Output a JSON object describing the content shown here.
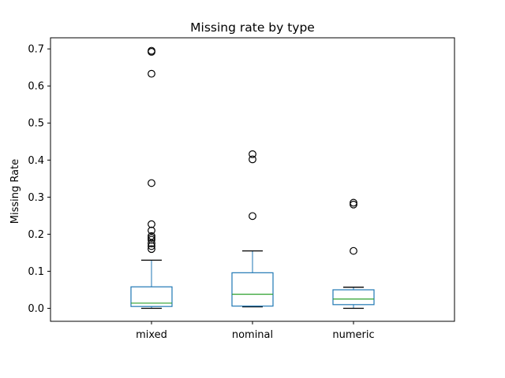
{
  "chart_data": {
    "type": "box",
    "title": "Missing rate by type",
    "xlabel": "",
    "ylabel": "Missing Rate",
    "ylim": [
      -0.035,
      0.73
    ],
    "yticks": [
      0.0,
      0.1,
      0.2,
      0.3,
      0.4,
      0.5,
      0.6,
      0.7
    ],
    "ytick_labels": [
      "0.0",
      "0.1",
      "0.2",
      "0.3",
      "0.4",
      "0.5",
      "0.6",
      "0.7"
    ],
    "grid": false,
    "legend": "none",
    "categories": [
      "mixed",
      "nominal",
      "numeric"
    ],
    "boxes": [
      {
        "category": "mixed",
        "whisker_low": 0.0,
        "q1": 0.005,
        "median": 0.014,
        "q3": 0.058,
        "whisker_high": 0.13,
        "outliers": [
          0.695,
          0.692,
          0.633,
          0.338,
          0.227,
          0.21,
          0.195,
          0.19,
          0.185,
          0.175,
          0.168,
          0.16
        ]
      },
      {
        "category": "nominal",
        "whisker_low": 0.004,
        "q1": 0.006,
        "median": 0.038,
        "q3": 0.096,
        "whisker_high": 0.155,
        "outliers": [
          0.416,
          0.402,
          0.249
        ]
      },
      {
        "category": "numeric",
        "whisker_low": 0.0,
        "q1": 0.01,
        "median": 0.025,
        "q3": 0.05,
        "whisker_high": 0.057,
        "outliers": [
          0.285,
          0.28,
          0.155
        ]
      }
    ],
    "colors": {
      "box": "#1f77b4",
      "median": "#2ca02c",
      "cap": "#000000",
      "outlier": "#000000",
      "axes": "#000000"
    }
  }
}
